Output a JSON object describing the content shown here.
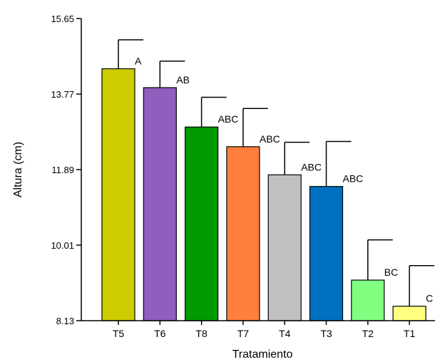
{
  "chart_data": {
    "type": "bar",
    "xlabel": "Tratamiento",
    "ylabel": "Altura (cm)",
    "ylim": [
      8.13,
      15.65
    ],
    "yticks": [
      "8.13",
      "10.01",
      "11.89",
      "13.77",
      "15.65"
    ],
    "grid": false,
    "categories": [
      "T5",
      "T6",
      "T8",
      "T7",
      "T4",
      "T3",
      "T2",
      "T1"
    ],
    "values": [
      14.4,
      13.93,
      12.95,
      12.46,
      11.76,
      11.47,
      9.14,
      8.49
    ],
    "error_upper": [
      15.12,
      14.59,
      13.69,
      13.41,
      12.57,
      12.59,
      10.14,
      9.5
    ],
    "significance": [
      "A",
      "AB",
      "ABC",
      "ABC",
      "ABC",
      "ABC",
      "BC",
      "C"
    ],
    "colors": [
      "#cccc00",
      "#8f5fbf",
      "#009900",
      "#ff7f3f",
      "#c0c0c0",
      "#0070c0",
      "#80ff80",
      "#ffff80"
    ]
  }
}
